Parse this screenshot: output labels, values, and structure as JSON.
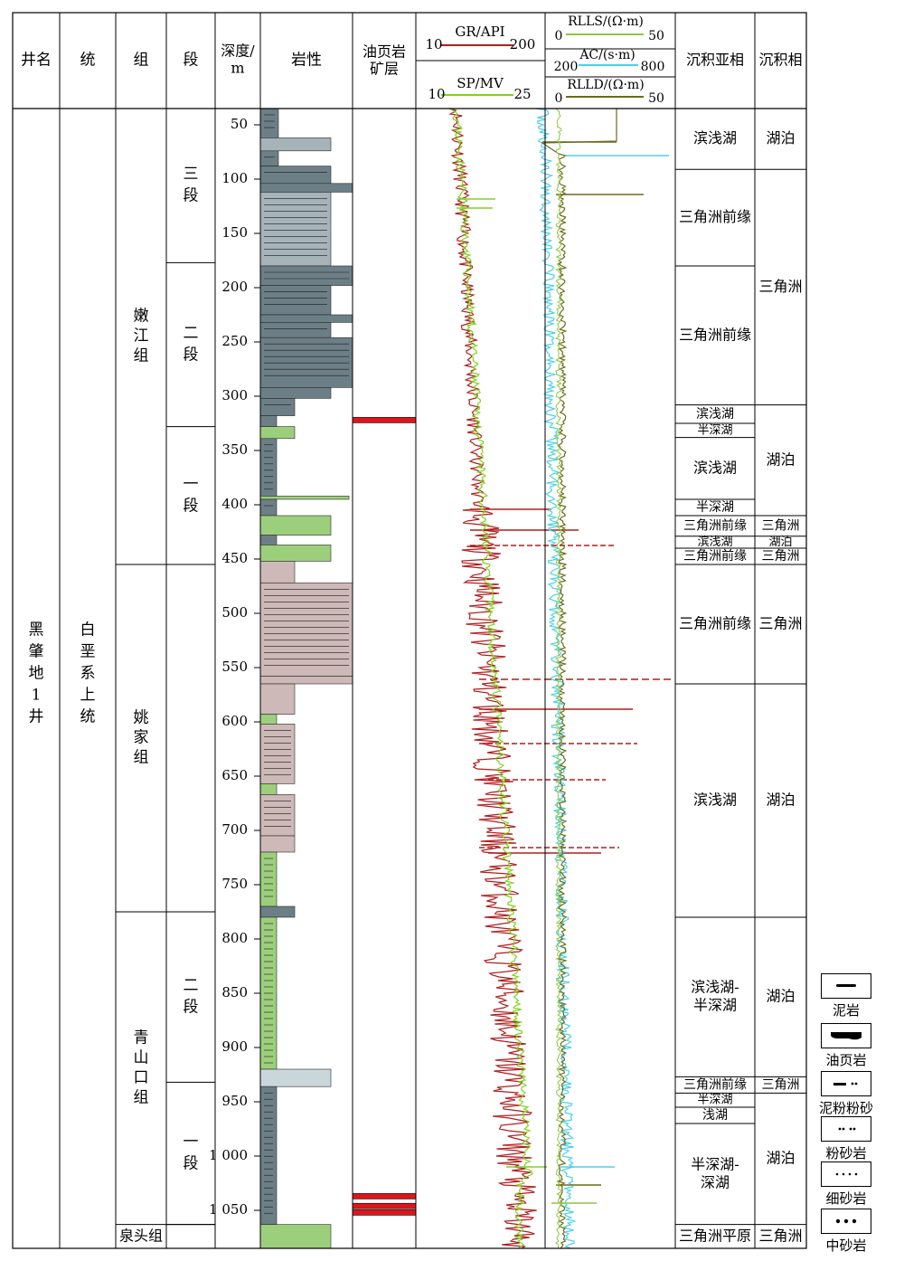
{
  "header": {
    "well_name": "井名",
    "system": "统",
    "formation": "组",
    "member": "段",
    "depth_line1": "深度/",
    "depth_line2": "m",
    "lithology": "岩性",
    "oil_shale_line1": "油页岩",
    "oil_shale_line2": "矿层",
    "gr": {
      "name": "GR/API",
      "min": "10",
      "max": "200",
      "color": "#b01e1e"
    },
    "sp": {
      "name": "SP/MV",
      "min": "10",
      "max": "25",
      "color": "#7ed321"
    },
    "rlls": {
      "name": "RLLS/(Ω·m)",
      "min": "0",
      "max": "50",
      "color": "#8dc63f"
    },
    "ac": {
      "name": "AC/(s·m)",
      "min": "200",
      "max": "800",
      "color": "#4dd0e8"
    },
    "rlld": {
      "name": "RLLD/(Ω·m)",
      "min": "0",
      "max": "50",
      "color": "#6b6b1a"
    },
    "subfacies": "沉积亚相",
    "facies": "沉积相"
  },
  "well": "黑肇地1井",
  "series": "白垩系上统",
  "formations": [
    {
      "name": "嫩江组",
      "top": 35,
      "base": 455
    },
    {
      "name": "姚家组",
      "top": 455,
      "base": 775
    },
    {
      "name": "青山口组",
      "top": 775,
      "base": 1063
    },
    {
      "name": "泉头组",
      "top": 1063,
      "base": 1085
    }
  ],
  "members": [
    {
      "name": "三段",
      "top": 35,
      "base": 177
    },
    {
      "name": "二段",
      "top": 177,
      "base": 328
    },
    {
      "name": "一段",
      "top": 328,
      "base": 455
    },
    {
      "name": "",
      "top": 455,
      "base": 775
    },
    {
      "name": "二段",
      "top": 775,
      "base": 932
    },
    {
      "name": "一段",
      "top": 932,
      "base": 1063
    },
    {
      "name": "",
      "top": 1063,
      "base": 1085
    }
  ],
  "depth_ticks": [
    "50",
    "100",
    "150",
    "200",
    "250",
    "300",
    "350",
    "400",
    "450",
    "500",
    "550",
    "600",
    "650",
    "700",
    "750",
    "800",
    "850",
    "900",
    "950",
    "1 000",
    "1 050"
  ],
  "depth_values": [
    50,
    100,
    150,
    200,
    250,
    300,
    350,
    400,
    450,
    500,
    550,
    600,
    650,
    700,
    750,
    800,
    850,
    900,
    950,
    1000,
    1050
  ],
  "oil_shale_layers": [
    322,
    1037,
    1046,
    1052
  ],
  "subfacies_list": [
    {
      "name": "滨浅湖",
      "top": 35,
      "base": 91
    },
    {
      "name": "三角洲前缘",
      "top": 91,
      "base": 180
    },
    {
      "name": "三角洲前缘",
      "top": 180,
      "base": 308
    },
    {
      "name": "滨浅湖",
      "top": 308,
      "base": 325
    },
    {
      "name": "半深湖",
      "top": 325,
      "base": 338
    },
    {
      "name": "滨浅湖",
      "top": 338,
      "base": 395
    },
    {
      "name": "半深湖",
      "top": 395,
      "base": 410
    },
    {
      "name": "三角洲前缘",
      "top": 410,
      "base": 429
    },
    {
      "name": "滨浅湖",
      "top": 429,
      "base": 440
    },
    {
      "name": "三角洲前缘",
      "top": 440,
      "base": 455
    },
    {
      "name": "三角洲前缘",
      "top": 455,
      "base": 565
    },
    {
      "name": "滨浅湖",
      "top": 565,
      "base": 780
    },
    {
      "name": "滨浅湖-半深湖",
      "top": 780,
      "base": 927
    },
    {
      "name": "三角洲前缘",
      "top": 927,
      "base": 942
    },
    {
      "name": "半深湖",
      "top": 942,
      "base": 955
    },
    {
      "name": "浅湖",
      "top": 955,
      "base": 970
    },
    {
      "name": "半深湖-深湖",
      "top": 970,
      "base": 1063
    },
    {
      "name": "三角洲平原",
      "top": 1063,
      "base": 1085
    }
  ],
  "facies_list": [
    {
      "name": "湖泊",
      "top": 35,
      "base": 91
    },
    {
      "name": "三角洲",
      "top": 91,
      "base": 308
    },
    {
      "name": "湖泊",
      "top": 308,
      "base": 410
    },
    {
      "name": "三角洲",
      "top": 410,
      "base": 429
    },
    {
      "name": "湖泊",
      "top": 429,
      "base": 440
    },
    {
      "name": "三角洲",
      "top": 440,
      "base": 455
    },
    {
      "name": "三角洲",
      "top": 455,
      "base": 565
    },
    {
      "name": "湖泊",
      "top": 565,
      "base": 780
    },
    {
      "name": "湖泊",
      "top": 780,
      "base": 927
    },
    {
      "name": "三角洲",
      "top": 927,
      "base": 942
    },
    {
      "name": "湖泊",
      "top": 942,
      "base": 1063
    },
    {
      "name": "三角洲",
      "top": 1063,
      "base": 1085
    }
  ],
  "legend": [
    {
      "label": "泥岩",
      "symbol": "mudstone"
    },
    {
      "label": "油页岩",
      "symbol": "oil-shale"
    },
    {
      "label": "泥粉粉砂岩",
      "symbol": "muddy-siltstone"
    },
    {
      "label": "粉砂岩",
      "symbol": "siltstone"
    },
    {
      "label": "细砂岩",
      "symbol": "fine-sandstone"
    },
    {
      "label": "中砂岩",
      "symbol": "medium-sandstone"
    }
  ],
  "colors": {
    "mudstone_gray": "#6d7f86",
    "light_gray": "#a6b4ba",
    "green_siltstone": "#9ccf7c",
    "pink_yaojia": "#cdb9b7",
    "pale_sand": "#c9d6da",
    "oil_shale_red": "#e0141a"
  }
}
